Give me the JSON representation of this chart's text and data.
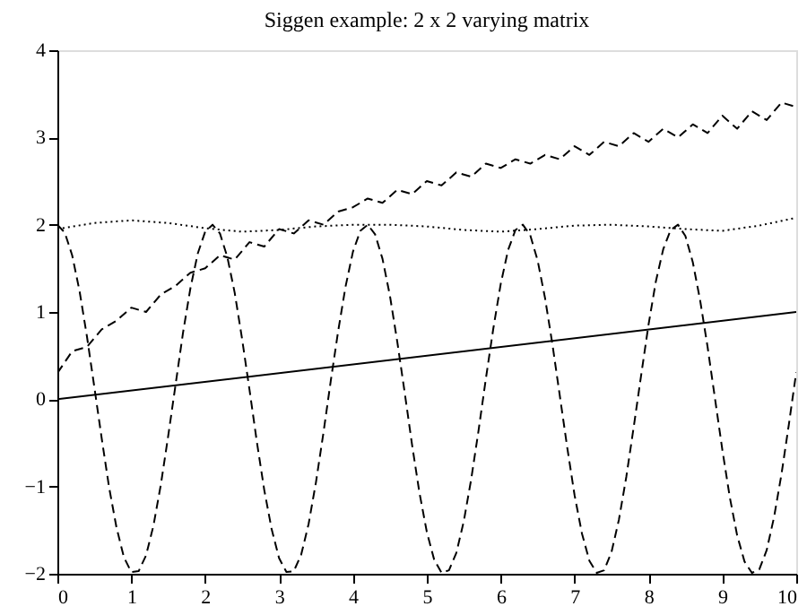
{
  "chart_data": {
    "type": "line",
    "title": "Siggen example: 2 x 2 varying matrix",
    "xlim": [
      0,
      10
    ],
    "ylim": [
      -2,
      4
    ],
    "xticks": [
      0,
      1,
      2,
      3,
      4,
      5,
      6,
      7,
      8,
      9,
      10
    ],
    "yticks": [
      -2,
      -1,
      0,
      1,
      2,
      3,
      4
    ],
    "grid": false,
    "marker": "none",
    "series": [
      {
        "color": "#000000",
        "line_style": "solid",
        "x": [
          0,
          10
        ],
        "values": [
          0,
          1
        ]
      },
      {
        "color": "#000000",
        "line_style": "dashed",
        "x": [
          0,
          0.1,
          0.2,
          0.3,
          0.4,
          0.5,
          0.6,
          0.7,
          0.8,
          0.9,
          1,
          1.1,
          1.2,
          1.3,
          1.4,
          1.5,
          1.6,
          1.7,
          1.8,
          1.9,
          2,
          2.1,
          2.2,
          2.3,
          2.4,
          2.5,
          2.6,
          2.7,
          2.8,
          2.9,
          3,
          3.1,
          3.2,
          3.3,
          3.4,
          3.5,
          3.6,
          3.7,
          3.8,
          3.9,
          4,
          4.1,
          4.2,
          4.3,
          4.4,
          4.5,
          4.6,
          4.7,
          4.8,
          4.9,
          5,
          5.1,
          5.2,
          5.3,
          5.4,
          5.5,
          5.6,
          5.7,
          5.8,
          5.9,
          6,
          6.1,
          6.2,
          6.3,
          6.4,
          6.5,
          6.6,
          6.7,
          6.8,
          6.9,
          7,
          7.1,
          7.2,
          7.3,
          7.4,
          7.5,
          7.6,
          7.7,
          7.8,
          7.9,
          8,
          8.1,
          8.2,
          8.3,
          8.4,
          8.5,
          8.6,
          8.7,
          8.8,
          8.9,
          9,
          9.1,
          9.2,
          9.3,
          9.4,
          9.5,
          9.6,
          9.7,
          9.8,
          9.9,
          10
        ],
        "values": [
          2,
          1.91,
          1.65,
          1.24,
          0.72,
          0.14,
          -0.45,
          -1.01,
          -1.47,
          -1.81,
          -1.98,
          -1.97,
          -1.79,
          -1.45,
          -0.98,
          -0.42,
          0.17,
          0.76,
          1.27,
          1.67,
          1.92,
          2,
          1.9,
          1.63,
          1.22,
          0.69,
          0.11,
          -0.49,
          -1.04,
          -1.49,
          -1.82,
          -1.98,
          -1.97,
          -1.78,
          -1.43,
          -0.95,
          -0.39,
          0.21,
          0.78,
          1.29,
          1.69,
          1.93,
          2,
          1.89,
          1.61,
          1.19,
          0.66,
          0.08,
          -0.52,
          -1.07,
          -1.52,
          -1.84,
          -1.99,
          -1.96,
          -1.76,
          -1.4,
          -0.92,
          -0.36,
          0.24,
          0.81,
          1.32,
          1.71,
          1.94,
          2,
          1.88,
          1.59,
          1.16,
          0.63,
          0.04,
          -0.55,
          -1.1,
          -1.54,
          -1.85,
          -1.99,
          -1.96,
          -1.75,
          -1.38,
          -0.89,
          -0.32,
          0.27,
          0.85,
          1.35,
          1.72,
          1.94,
          2,
          1.87,
          1.57,
          1.13,
          0.6,
          0.01,
          -0.58,
          -1.12,
          -1.56,
          -1.86,
          -1.99,
          -1.95,
          -1.73,
          -1.35,
          -0.86,
          -0.29,
          0.31
        ]
      },
      {
        "color": "#000000",
        "line_style": "dotted",
        "x": [
          0,
          0.5,
          1,
          1.5,
          2,
          2.5,
          3,
          3.5,
          4,
          4.5,
          5,
          5.5,
          6,
          6.5,
          7,
          7.5,
          8,
          8.5,
          9,
          9.5,
          10
        ],
        "values": [
          1.95,
          2.02,
          2.05,
          2.02,
          1.96,
          1.92,
          1.94,
          1.98,
          2,
          2,
          1.98,
          1.94,
          1.92,
          1.95,
          1.99,
          2,
          1.98,
          1.95,
          1.93,
          1.99,
          2.08
        ]
      },
      {
        "color": "#000000",
        "line_style": "dashed",
        "x": [
          0,
          0.2,
          0.4,
          0.6,
          0.8,
          1,
          1.2,
          1.4,
          1.6,
          1.8,
          2,
          2.2,
          2.4,
          2.6,
          2.8,
          3,
          3.2,
          3.4,
          3.6,
          3.8,
          4,
          4.2,
          4.4,
          4.6,
          4.8,
          5,
          5.2,
          5.4,
          5.6,
          5.8,
          6,
          6.2,
          6.4,
          6.6,
          6.8,
          7,
          7.2,
          7.4,
          7.6,
          7.8,
          8,
          8.2,
          8.4,
          8.6,
          8.8,
          9,
          9.2,
          9.4,
          9.6,
          9.8,
          10
        ],
        "values": [
          0.3,
          0.55,
          0.6,
          0.8,
          0.9,
          1.05,
          1,
          1.2,
          1.3,
          1.45,
          1.5,
          1.65,
          1.6,
          1.8,
          1.75,
          1.95,
          1.9,
          2.05,
          2,
          2.15,
          2.2,
          2.3,
          2.25,
          2.4,
          2.35,
          2.5,
          2.45,
          2.6,
          2.55,
          2.7,
          2.65,
          2.75,
          2.7,
          2.8,
          2.75,
          2.9,
          2.8,
          2.95,
          2.9,
          3.05,
          2.95,
          3.1,
          3,
          3.15,
          3.05,
          3.25,
          3.1,
          3.3,
          3.2,
          3.4,
          3.35
        ]
      }
    ]
  }
}
